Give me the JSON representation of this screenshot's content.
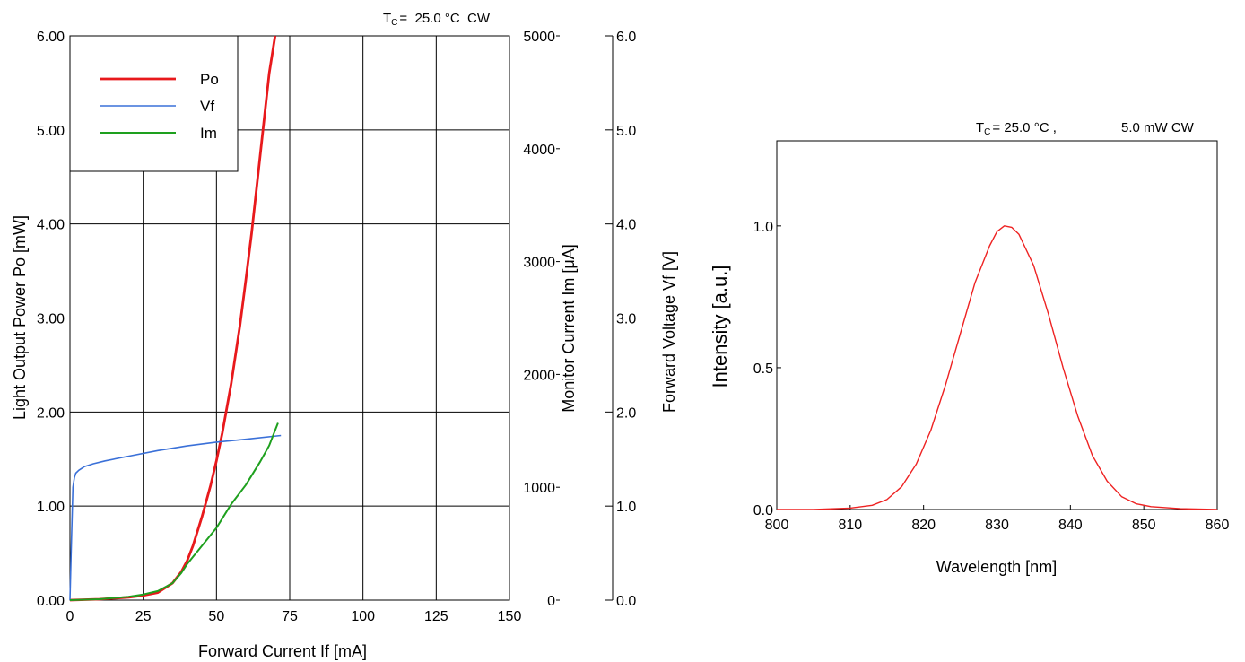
{
  "chart_data": [
    {
      "type": "line",
      "header": "T C = 25.0 °C CW",
      "header_parts": {
        "t": "T",
        "sub": "C",
        "rest": "=  25.0 °C  CW"
      },
      "xlabel": "Forward Current If [mA]",
      "xlim": [
        0,
        150
      ],
      "xticks": [
        0,
        25,
        50,
        75,
        100,
        125,
        150
      ],
      "xtick_labels": [
        "0",
        "25",
        "50",
        "75",
        "100",
        "125",
        "150"
      ],
      "grid": true,
      "legend_position": "top-left",
      "axes": {
        "po": {
          "label": "Light Output Power Po [mW]",
          "lim": [
            0,
            6
          ],
          "ticks": [
            0,
            1,
            2,
            3,
            4,
            5,
            6
          ],
          "tick_labels": [
            "0.00",
            "1.00",
            "2.00",
            "3.00",
            "4.00",
            "5.00",
            "6.00"
          ]
        },
        "im": {
          "label": "Monitor Current Im [μA]",
          "lim": [
            0,
            5000
          ],
          "ticks": [
            0,
            1000,
            2000,
            3000,
            4000,
            5000
          ],
          "tick_labels": [
            "0",
            "1000",
            "2000",
            "3000",
            "4000",
            "5000"
          ]
        },
        "vf": {
          "label": "Forward Voltage Vf [V]",
          "lim": [
            0,
            6
          ],
          "ticks": [
            0,
            1,
            2,
            3,
            4,
            5,
            6
          ],
          "tick_labels": [
            "0.0",
            "1.0",
            "2.0",
            "3.0",
            "4.0",
            "5.0",
            "6.0"
          ]
        }
      },
      "series": [
        {
          "name": "Po",
          "axis": "po",
          "color": "#e8191c",
          "x": [
            0,
            10,
            20,
            25,
            30,
            35,
            38,
            40,
            42,
            45,
            48,
            50,
            52,
            55,
            58,
            60,
            62,
            65,
            68,
            70
          ],
          "y": [
            0,
            0.01,
            0.03,
            0.05,
            0.08,
            0.18,
            0.3,
            0.42,
            0.58,
            0.88,
            1.22,
            1.48,
            1.78,
            2.3,
            2.92,
            3.4,
            3.9,
            4.75,
            5.6,
            6.0
          ]
        },
        {
          "name": "Vf",
          "axis": "vf",
          "color": "#3a70d8",
          "x": [
            0,
            0.4,
            1,
            1.5,
            2,
            3,
            5,
            8,
            12,
            20,
            30,
            40,
            50,
            60,
            72
          ],
          "y": [
            0,
            0.5,
            1.2,
            1.3,
            1.35,
            1.38,
            1.42,
            1.45,
            1.48,
            1.53,
            1.59,
            1.64,
            1.68,
            1.71,
            1.75
          ]
        },
        {
          "name": "Im",
          "axis": "im",
          "color": "#1ea01e",
          "x": [
            0,
            10,
            20,
            25,
            30,
            35,
            38,
            40,
            45,
            50,
            55,
            60,
            65,
            68,
            71
          ],
          "y": [
            0,
            8,
            30,
            50,
            80,
            150,
            240,
            320,
            480,
            640,
            850,
            1020,
            1230,
            1370,
            1570
          ]
        }
      ]
    },
    {
      "type": "line",
      "header_parts": {
        "t": "T",
        "sub": "C",
        "rest": "=  25.0 °C ,",
        "power": "5.0 mW  CW"
      },
      "xlabel": "Wavelength [nm]",
      "ylabel": "Intensity [a.u.]",
      "xlim": [
        800,
        860
      ],
      "ylim": [
        0,
        1.3
      ],
      "xticks": [
        800,
        810,
        820,
        830,
        840,
        850,
        860
      ],
      "xtick_labels": [
        "800",
        "810",
        "820",
        "830",
        "840",
        "850",
        "860"
      ],
      "yticks": [
        0,
        0.5,
        1.0
      ],
      "ytick_labels": [
        "0.0",
        "0.5",
        "1.0"
      ],
      "grid": false,
      "series": [
        {
          "name": "",
          "color": "#ee2222",
          "x": [
            800,
            805,
            810,
            813,
            815,
            817,
            819,
            821,
            823,
            825,
            827,
            829,
            830,
            831,
            832,
            833,
            835,
            837,
            839,
            841,
            843,
            845,
            847,
            849,
            851,
            855,
            860
          ],
          "y": [
            0,
            0,
            0.005,
            0.015,
            0.035,
            0.08,
            0.16,
            0.28,
            0.44,
            0.62,
            0.8,
            0.93,
            0.98,
            1.0,
            0.995,
            0.97,
            0.86,
            0.69,
            0.5,
            0.33,
            0.19,
            0.1,
            0.045,
            0.02,
            0.01,
            0.003,
            0
          ]
        }
      ]
    }
  ]
}
